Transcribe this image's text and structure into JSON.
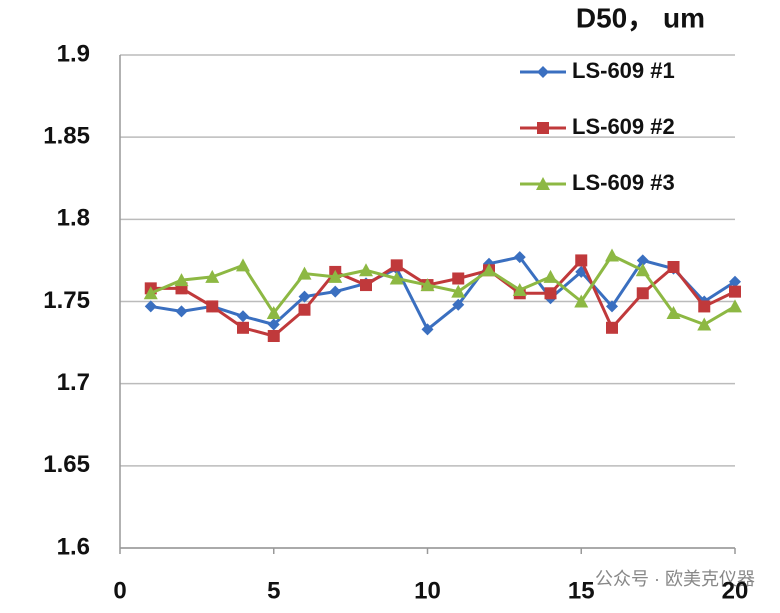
{
  "chart_data": {
    "type": "line",
    "title": "D50， um",
    "watermark": "公众号 · 欧美克仪器",
    "x": [
      1,
      2,
      3,
      4,
      5,
      6,
      7,
      8,
      9,
      10,
      11,
      12,
      13,
      14,
      15,
      16,
      17,
      18,
      19,
      20
    ],
    "series": [
      {
        "name": "LS-609 #1",
        "color": "#3a6fc0",
        "marker": "diamond",
        "values": [
          1.747,
          1.744,
          1.747,
          1.741,
          1.736,
          1.753,
          1.756,
          1.761,
          1.77,
          1.733,
          1.748,
          1.773,
          1.777,
          1.752,
          1.768,
          1.747,
          1.775,
          1.77,
          1.75,
          1.762
        ]
      },
      {
        "name": "LS-609 #2",
        "color": "#c0393b",
        "marker": "square",
        "values": [
          1.758,
          1.758,
          1.747,
          1.734,
          1.729,
          1.745,
          1.768,
          1.76,
          1.772,
          1.76,
          1.764,
          1.769,
          1.755,
          1.755,
          1.775,
          1.734,
          1.755,
          1.771,
          1.747,
          1.756
        ]
      },
      {
        "name": "LS-609 #3",
        "color": "#8db843",
        "marker": "triangle",
        "values": [
          1.755,
          1.763,
          1.765,
          1.772,
          1.743,
          1.767,
          1.765,
          1.769,
          1.764,
          1.76,
          1.756,
          1.769,
          1.757,
          1.765,
          1.75,
          1.778,
          1.769,
          1.743,
          1.736,
          1.747
        ]
      }
    ],
    "xlim": [
      0,
      20
    ],
    "ylim": [
      1.6,
      1.9
    ],
    "xticks": [
      0,
      5,
      10,
      15,
      20
    ],
    "yticks": [
      1.6,
      1.65,
      1.7,
      1.75,
      1.8,
      1.85,
      1.9
    ],
    "grid": true,
    "legend": "top-right"
  }
}
